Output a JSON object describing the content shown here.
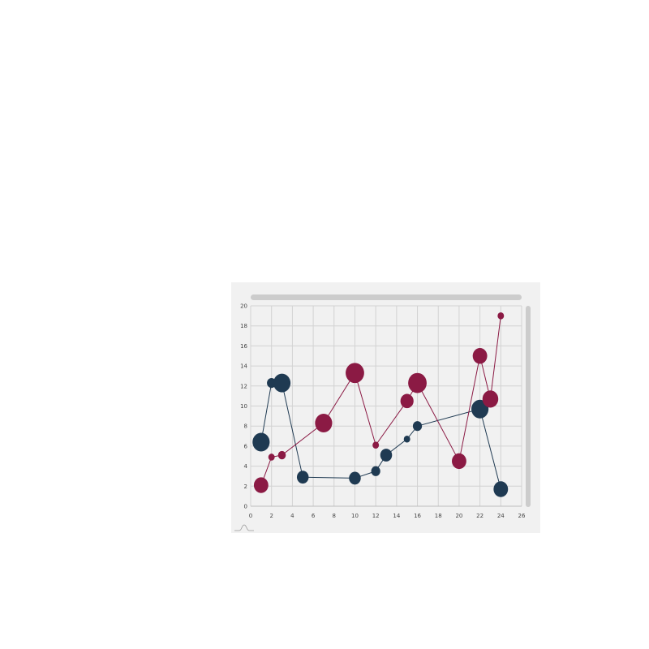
{
  "colors": {
    "panel_bg": "#f1f1f1",
    "grid": "#d2d2d2",
    "scrollbar": "#cccccc",
    "navy": "#1f3a52",
    "crimson": "#8b1a44"
  },
  "icons": {
    "bottom_left": "bell-curve-icon"
  },
  "chart_data": {
    "type": "scatter",
    "variant": "bubble-line",
    "xlim": [
      0,
      26
    ],
    "ylim": [
      0,
      20
    ],
    "x_ticks": [
      0,
      2,
      4,
      6,
      8,
      10,
      12,
      14,
      16,
      18,
      20,
      22,
      24,
      26
    ],
    "y_ticks": [
      0,
      2,
      4,
      6,
      8,
      10,
      12,
      14,
      16,
      18,
      20
    ],
    "x_tick_labels": [
      "0",
      "2",
      "4",
      "6",
      "8",
      "10",
      "12",
      "14",
      "16",
      "18",
      "20",
      "22",
      "24",
      "26"
    ],
    "y_tick_labels": [
      "0",
      "2",
      "4",
      "6",
      "8",
      "10",
      "12",
      "14",
      "16",
      "18",
      "20"
    ],
    "grid": true,
    "legend": "none",
    "scrollbars": {
      "horizontal": true,
      "vertical": true
    },
    "series": [
      {
        "color": "#1f3a52",
        "points": [
          {
            "x": 1,
            "y": 6.4,
            "size": 5
          },
          {
            "x": 2,
            "y": 12.3,
            "size": 2
          },
          {
            "x": 3,
            "y": 12.3,
            "size": 5
          },
          {
            "x": 5,
            "y": 2.9,
            "size": 3
          },
          {
            "x": 10,
            "y": 2.8,
            "size": 3
          },
          {
            "x": 12,
            "y": 3.5,
            "size": 2
          },
          {
            "x": 13,
            "y": 5.1,
            "size": 3
          },
          {
            "x": 15,
            "y": 6.7,
            "size": 1
          },
          {
            "x": 16,
            "y": 8,
            "size": 2
          },
          {
            "x": 22,
            "y": 9.7,
            "size": 5
          },
          {
            "x": 24,
            "y": 1.7,
            "size": 4
          }
        ]
      },
      {
        "color": "#8b1a44",
        "points": [
          {
            "x": 1,
            "y": 2.1,
            "size": 4
          },
          {
            "x": 2,
            "y": 4.9,
            "size": 1
          },
          {
            "x": 3,
            "y": 5.1,
            "size": 1.5
          },
          {
            "x": 7,
            "y": 8.3,
            "size": 5
          },
          {
            "x": 10,
            "y": 13.3,
            "size": 5.5
          },
          {
            "x": 12,
            "y": 6.1,
            "size": 1
          },
          {
            "x": 15,
            "y": 10.5,
            "size": 3.5
          },
          {
            "x": 16,
            "y": 12.3,
            "size": 5.5
          },
          {
            "x": 20,
            "y": 4.5,
            "size": 4
          },
          {
            "x": 22,
            "y": 15,
            "size": 4
          },
          {
            "x": 23,
            "y": 10.7,
            "size": 4.5
          },
          {
            "x": 24,
            "y": 19,
            "size": 1
          }
        ]
      }
    ]
  }
}
